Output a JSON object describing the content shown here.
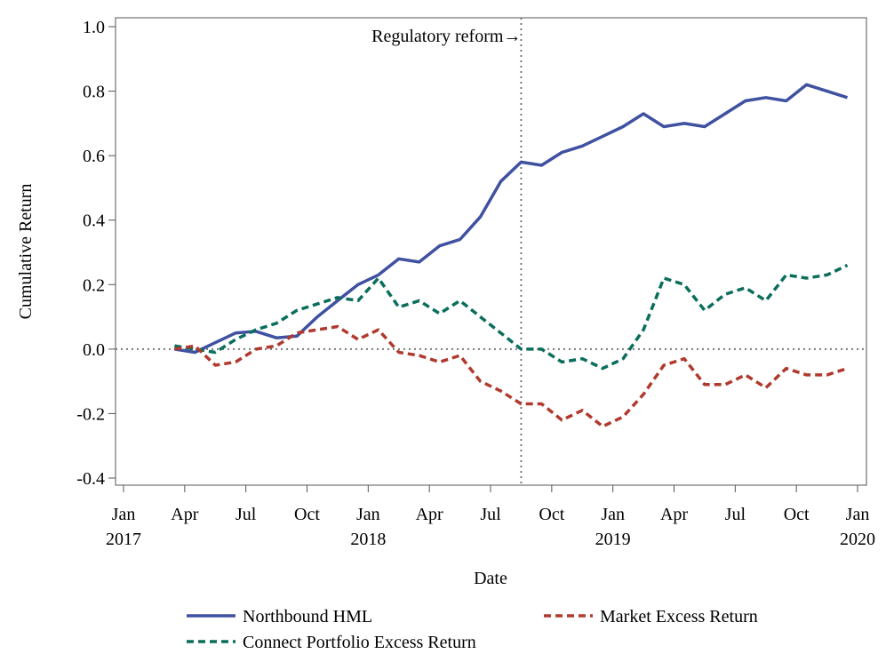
{
  "chart_data": {
    "type": "line",
    "xlabel": "Date",
    "ylabel": "Cumulative Return",
    "x": [
      "2017-03",
      "2017-04",
      "2017-05",
      "2017-06",
      "2017-07",
      "2017-08",
      "2017-09",
      "2017-10",
      "2017-11",
      "2017-12",
      "2018-01",
      "2018-02",
      "2018-03",
      "2018-04",
      "2018-05",
      "2018-06",
      "2018-07",
      "2018-08",
      "2018-09",
      "2018-10",
      "2018-11",
      "2018-12",
      "2019-01",
      "2019-02",
      "2019-03",
      "2019-04",
      "2019-05",
      "2019-06",
      "2019-07",
      "2019-08",
      "2019-09",
      "2019-10",
      "2019-11",
      "2019-12"
    ],
    "series": [
      {
        "name": "Northbound HML",
        "color": "#3f51a0",
        "dash": "solid",
        "values": [
          0.0,
          -0.01,
          0.02,
          0.05,
          0.055,
          0.035,
          0.04,
          0.1,
          0.15,
          0.2,
          0.23,
          0.28,
          0.27,
          0.32,
          0.34,
          0.41,
          0.52,
          0.58,
          0.57,
          0.61,
          0.63,
          0.66,
          0.69,
          0.73,
          0.69,
          0.7,
          0.69,
          0.73,
          0.77,
          0.78,
          0.77,
          0.82,
          0.8,
          0.78
        ]
      },
      {
        "name": "Market Excess Return",
        "color": "#b03a2e",
        "dash": "dashed",
        "values": [
          0.0,
          0.01,
          -0.05,
          -0.04,
          0.0,
          0.01,
          0.05,
          0.06,
          0.07,
          0.03,
          0.06,
          -0.01,
          -0.02,
          -0.04,
          -0.02,
          -0.1,
          -0.13,
          -0.17,
          -0.17,
          -0.22,
          -0.19,
          -0.24,
          -0.21,
          -0.14,
          -0.05,
          -0.03,
          -0.11,
          -0.11,
          -0.08,
          -0.12,
          -0.06,
          -0.08,
          -0.08,
          -0.06
        ]
      },
      {
        "name": "Connect Portfolio Excess Return",
        "color": "#0a6e5c",
        "dash": "dashed",
        "values": [
          0.01,
          0.0,
          -0.01,
          0.03,
          0.06,
          0.08,
          0.12,
          0.14,
          0.16,
          0.15,
          0.22,
          0.13,
          0.15,
          0.11,
          0.15,
          0.1,
          0.05,
          0.0,
          0.0,
          -0.04,
          -0.03,
          -0.06,
          -0.03,
          0.06,
          0.22,
          0.2,
          0.12,
          0.17,
          0.19,
          0.15,
          0.23,
          0.22,
          0.23,
          0.26
        ]
      }
    ],
    "xlim": [
      "2017-01",
      "2020-01"
    ],
    "xticks": [
      {
        "value": "2017-01",
        "label": "Jan",
        "year": "2017"
      },
      {
        "value": "2017-04",
        "label": "Apr"
      },
      {
        "value": "2017-07",
        "label": "Jul"
      },
      {
        "value": "2017-10",
        "label": "Oct"
      },
      {
        "value": "2018-01",
        "label": "Jan",
        "year": "2018"
      },
      {
        "value": "2018-04",
        "label": "Apr"
      },
      {
        "value": "2018-07",
        "label": "Jul"
      },
      {
        "value": "2018-10",
        "label": "Oct"
      },
      {
        "value": "2019-01",
        "label": "Jan",
        "year": "2019"
      },
      {
        "value": "2019-04",
        "label": "Apr"
      },
      {
        "value": "2019-07",
        "label": "Jul"
      },
      {
        "value": "2019-10",
        "label": "Oct"
      },
      {
        "value": "2020-01",
        "label": "Jan",
        "year": "2020"
      }
    ],
    "ylim": [
      -0.4,
      1.0
    ],
    "yticks": [
      -0.4,
      -0.2,
      {
        "value": 0,
        "label": "0.0"
      },
      0.2,
      0.4,
      0.6,
      0.8,
      {
        "value": 1,
        "label": "1.0"
      }
    ],
    "hline": 0,
    "annotation": {
      "text": "Regulatory reform→",
      "x": "2018-08"
    },
    "legend": "bottom"
  }
}
